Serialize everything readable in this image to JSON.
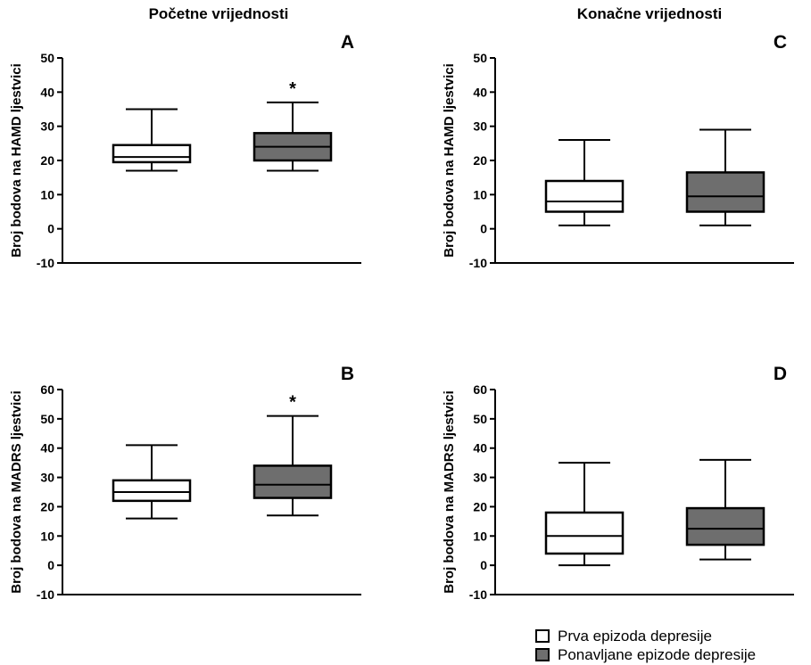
{
  "headers": {
    "left": "Početne vrijednosti",
    "right": "Konačne vrijednosti"
  },
  "legend": {
    "first": "Prva epizoda depresije",
    "recurrent": "Ponavljane epizode depresije",
    "colors": {
      "first": "#ffffff",
      "recurrent": "#6e6e6e"
    }
  },
  "chart_data": [
    {
      "type": "boxplot",
      "panel": "A",
      "ylabel": "Broj bodova na HAMD ljestvici",
      "ylim": [
        -10,
        50
      ],
      "yticks": [
        -10,
        0,
        10,
        20,
        30,
        40,
        50
      ],
      "series": [
        {
          "name": "Prva epizoda depresije",
          "min": 17,
          "q1": 19.5,
          "median": 21,
          "q3": 24.5,
          "max": 35,
          "annotation": ""
        },
        {
          "name": "Ponavljane epizode depresije",
          "min": 17,
          "q1": 20,
          "median": 24,
          "q3": 28,
          "max": 37,
          "annotation": "*"
        }
      ]
    },
    {
      "type": "boxplot",
      "panel": "C",
      "ylabel": "Broj bodova na HAMD ljestvici",
      "ylim": [
        -10,
        50
      ],
      "yticks": [
        -10,
        0,
        10,
        20,
        30,
        40,
        50
      ],
      "series": [
        {
          "name": "Prva epizoda depresije",
          "min": 1,
          "q1": 5,
          "median": 8,
          "q3": 14,
          "max": 26,
          "annotation": ""
        },
        {
          "name": "Ponavljane epizode depresije",
          "min": 1,
          "q1": 5,
          "median": 9.5,
          "q3": 16.5,
          "max": 29,
          "annotation": ""
        }
      ]
    },
    {
      "type": "boxplot",
      "panel": "B",
      "ylabel": "Broj bodova na MADRS ljestvici",
      "ylim": [
        -10,
        60
      ],
      "yticks": [
        -10,
        0,
        10,
        20,
        30,
        40,
        50,
        60
      ],
      "series": [
        {
          "name": "Prva epizoda depresije",
          "min": 16,
          "q1": 22,
          "median": 25,
          "q3": 29,
          "max": 41,
          "annotation": ""
        },
        {
          "name": "Ponavljane epizode depresije",
          "min": 17,
          "q1": 23,
          "median": 27.5,
          "q3": 34,
          "max": 51,
          "annotation": "*"
        }
      ]
    },
    {
      "type": "boxplot",
      "panel": "D",
      "ylabel": "Broj bodova na MADRS ljestvici",
      "ylim": [
        -10,
        60
      ],
      "yticks": [
        -10,
        0,
        10,
        20,
        30,
        40,
        50,
        60
      ],
      "series": [
        {
          "name": "Prva epizoda depresije",
          "min": 0,
          "q1": 4,
          "median": 10,
          "q3": 18,
          "max": 35,
          "annotation": ""
        },
        {
          "name": "Ponavljane epizode depresije",
          "min": 2,
          "q1": 7,
          "median": 12.5,
          "q3": 19.5,
          "max": 36,
          "annotation": ""
        }
      ]
    }
  ]
}
